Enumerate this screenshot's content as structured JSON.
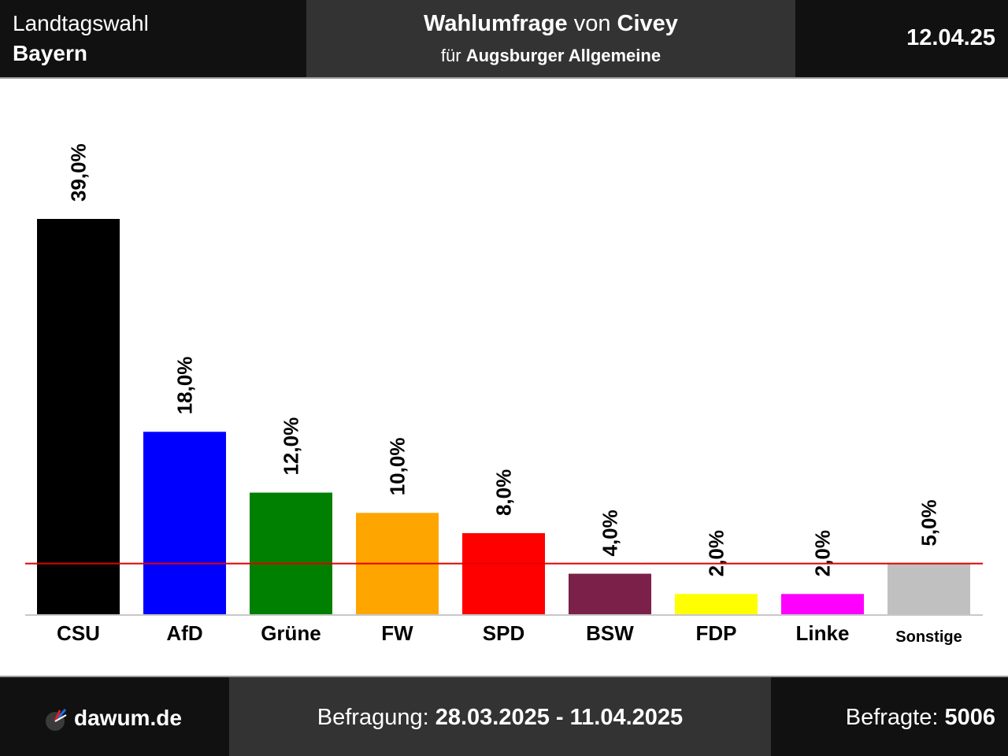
{
  "header": {
    "election_label": "Landtagswahl",
    "region": "Bayern",
    "title_bold1": "Wahlumfrage",
    "title_mid": "von",
    "title_bold2": "Civey",
    "subtitle_prefix": "für",
    "subtitle_client": "Augsburger Allgemeine",
    "date": "12.04.25"
  },
  "footer": {
    "site": "dawum.de",
    "period_label": "Befragung:",
    "period_value": "28.03.2025 - 11.04.2025",
    "respondents_label": "Befragte:",
    "respondents_value": "5006"
  },
  "colors": {
    "threshold_line": "#e00000",
    "header_bg": "#111111",
    "header_mid_bg": "#333333"
  },
  "chart_data": {
    "type": "bar",
    "categories": [
      "CSU",
      "AfD",
      "Grüne",
      "FW",
      "SPD",
      "BSW",
      "FDP",
      "Linke",
      "Sonstige"
    ],
    "values": [
      39.0,
      18.0,
      12.0,
      10.0,
      8.0,
      4.0,
      2.0,
      2.0,
      5.0
    ],
    "value_labels": [
      "39,0%",
      "18,0%",
      "12,0%",
      "10,0%",
      "8,0%",
      "4,0%",
      "2,0%",
      "2,0%",
      "5,0%"
    ],
    "colors": [
      "#000000",
      "#0000ff",
      "#008000",
      "#ffa500",
      "#ff0000",
      "#7b2049",
      "#ffff00",
      "#ff00ff",
      "#c0c0c0"
    ],
    "threshold": 5.0,
    "ylim": [
      0,
      39.0
    ],
    "grid": false,
    "legend": "none"
  }
}
